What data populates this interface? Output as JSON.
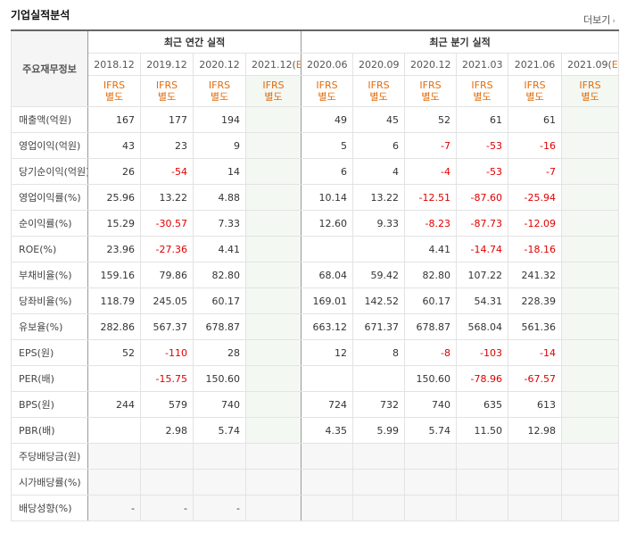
{
  "title": "기업실적분석",
  "more_label": "더보기",
  "header": {
    "row_label": "주요재무정보",
    "annual_label": "최근 연간 실적",
    "quarter_label": "최근 분기 실적",
    "annual_periods": [
      "2018.12",
      "2019.12",
      "2020.12",
      "2021.12(E)"
    ],
    "quarter_periods": [
      "2020.06",
      "2020.09",
      "2020.12",
      "2021.03",
      "2021.06",
      "2021.09(E)"
    ],
    "ifrs_line1": "IFRS",
    "ifrs_line2": "별도"
  },
  "rows": [
    {
      "label": "매출액(억원)",
      "values": [
        "167",
        "177",
        "194",
        "",
        "49",
        "45",
        "52",
        "61",
        "61",
        ""
      ]
    },
    {
      "label": "영업이익(억원)",
      "values": [
        "43",
        "23",
        "9",
        "",
        "5",
        "6",
        "-7",
        "-53",
        "-16",
        ""
      ]
    },
    {
      "label": "당기순이익(억원)",
      "values": [
        "26",
        "-54",
        "14",
        "",
        "6",
        "4",
        "-4",
        "-53",
        "-7",
        ""
      ]
    },
    {
      "label": "영업이익률(%)",
      "values": [
        "25.96",
        "13.22",
        "4.88",
        "",
        "10.14",
        "13.22",
        "-12.51",
        "-87.60",
        "-25.94",
        ""
      ]
    },
    {
      "label": "순이익률(%)",
      "values": [
        "15.29",
        "-30.57",
        "7.33",
        "",
        "12.60",
        "9.33",
        "-8.23",
        "-87.73",
        "-12.09",
        ""
      ]
    },
    {
      "label": "ROE(%)",
      "values": [
        "23.96",
        "-27.36",
        "4.41",
        "",
        "",
        "",
        "4.41",
        "-14.74",
        "-18.16",
        ""
      ]
    },
    {
      "label": "부채비율(%)",
      "values": [
        "159.16",
        "79.86",
        "82.80",
        "",
        "68.04",
        "59.42",
        "82.80",
        "107.22",
        "241.32",
        ""
      ]
    },
    {
      "label": "당좌비율(%)",
      "values": [
        "118.79",
        "245.05",
        "60.17",
        "",
        "169.01",
        "142.52",
        "60.17",
        "54.31",
        "228.39",
        ""
      ]
    },
    {
      "label": "유보율(%)",
      "values": [
        "282.86",
        "567.37",
        "678.87",
        "",
        "663.12",
        "671.37",
        "678.87",
        "568.04",
        "561.36",
        ""
      ]
    },
    {
      "label": "EPS(원)",
      "values": [
        "52",
        "-110",
        "28",
        "",
        "12",
        "8",
        "-8",
        "-103",
        "-14",
        ""
      ]
    },
    {
      "label": "PER(배)",
      "values": [
        "",
        "-15.75",
        "150.60",
        "",
        "",
        "",
        "150.60",
        "-78.96",
        "-67.57",
        ""
      ]
    },
    {
      "label": "BPS(원)",
      "values": [
        "244",
        "579",
        "740",
        "",
        "724",
        "732",
        "740",
        "635",
        "613",
        ""
      ]
    },
    {
      "label": "PBR(배)",
      "values": [
        "",
        "2.98",
        "5.74",
        "",
        "4.35",
        "5.99",
        "5.74",
        "11.50",
        "12.98",
        ""
      ]
    },
    {
      "label": "주당배당금(원)",
      "values": [
        "",
        "",
        "",
        "",
        "",
        "",
        "",
        "",
        "",
        ""
      ]
    },
    {
      "label": "시가배당률(%)",
      "values": [
        "",
        "",
        "",
        "",
        "",
        "",
        "",
        "",
        "",
        ""
      ]
    },
    {
      "label": "배당성향(%)",
      "values": [
        "-",
        "-",
        "-",
        "",
        "",
        "",
        "",
        "",
        "",
        ""
      ]
    }
  ]
}
